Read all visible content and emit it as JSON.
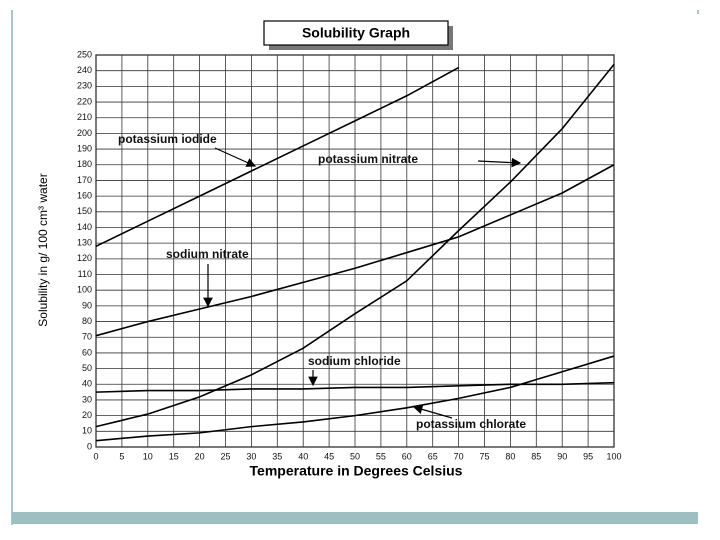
{
  "chart_data": {
    "type": "line",
    "title": "Solubility Graph",
    "xlabel": "Temperature in Degrees Celsius",
    "ylabel": "Solubility in g/ 100 cm³ water",
    "x": [
      0,
      10,
      20,
      30,
      40,
      50,
      60,
      70,
      80,
      90,
      100
    ],
    "series": [
      {
        "name": "potassium iodide",
        "color": "#000000",
        "values": [
          128,
          144,
          160,
          176,
          192,
          208,
          224,
          242,
          null,
          null,
          null
        ]
      },
      {
        "name": "potassium nitrate",
        "color": "#000000",
        "values": [
          13,
          21,
          32,
          46,
          63,
          85,
          106,
          138,
          169,
          203,
          244
        ]
      },
      {
        "name": "sodium nitrate",
        "color": "#000000",
        "values": [
          71,
          80,
          88,
          96,
          105,
          114,
          124,
          134,
          148,
          162,
          180
        ]
      },
      {
        "name": "sodium chloride",
        "color": "#000000",
        "values": [
          35,
          36,
          36,
          37,
          37,
          38,
          38,
          39,
          40,
          40,
          41
        ]
      },
      {
        "name": "potassium chlorate",
        "color": "#000000",
        "values": [
          4,
          7,
          9,
          13,
          16,
          20,
          25,
          31,
          38,
          48,
          58
        ]
      }
    ],
    "xlim": [
      0,
      100
    ],
    "xticks": [
      0,
      5,
      10,
      15,
      20,
      25,
      30,
      35,
      40,
      45,
      50,
      55,
      60,
      65,
      70,
      75,
      80,
      85,
      90,
      95,
      100
    ],
    "ylim": [
      0,
      250
    ],
    "yticks": [
      0,
      10,
      20,
      30,
      40,
      50,
      60,
      70,
      80,
      90,
      100,
      110,
      120,
      130,
      140,
      150,
      160,
      170,
      180,
      190,
      200,
      210,
      220,
      230,
      240,
      250
    ],
    "grid": true
  }
}
